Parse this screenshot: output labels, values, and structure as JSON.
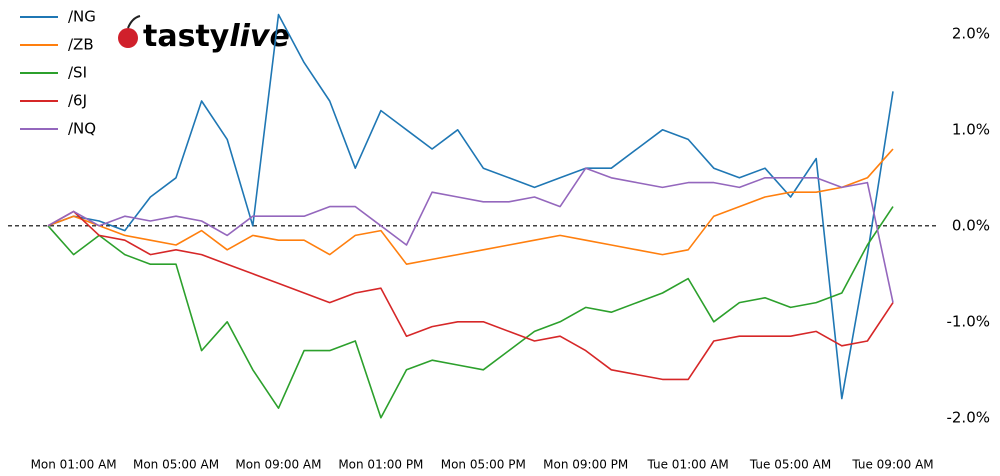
{
  "logo": {
    "first": "tasty",
    "second": "live"
  },
  "chart_data": {
    "type": "line",
    "categories": [
      null,
      "Mon 01:00 AM",
      null,
      null,
      null,
      "Mon 05:00 AM",
      null,
      null,
      null,
      "Mon 09:00 AM",
      null,
      null,
      null,
      "Mon 01:00 PM",
      null,
      null,
      null,
      "Mon 05:00 PM",
      null,
      null,
      null,
      "Mon 09:00 PM",
      null,
      null,
      null,
      "Tue 01:00 AM",
      null,
      null,
      null,
      "Tue 05:00 AM",
      null,
      null,
      null,
      "Tue 09:00 AM"
    ],
    "series": [
      {
        "name": "/NG",
        "color": "#1f77b4",
        "values": [
          0,
          0.1,
          0.05,
          -0.05,
          0.3,
          0.5,
          1.3,
          0.9,
          0.0,
          2.2,
          1.7,
          1.3,
          0.6,
          1.2,
          1.0,
          0.8,
          1.0,
          0.6,
          0.5,
          0.4,
          0.5,
          0.6,
          0.6,
          0.8,
          1.0,
          0.9,
          0.6,
          0.5,
          0.6,
          0.3,
          0.7,
          -1.8,
          -0.3,
          1.4
        ]
      },
      {
        "name": "/ZB",
        "color": "#ff7f0e",
        "values": [
          0,
          0.1,
          0,
          -0.1,
          -0.15,
          -0.2,
          -0.05,
          -0.25,
          -0.1,
          -0.15,
          -0.15,
          -0.3,
          -0.1,
          -0.05,
          -0.4,
          -0.35,
          -0.3,
          -0.25,
          -0.2,
          -0.15,
          -0.1,
          -0.15,
          -0.2,
          -0.25,
          -0.3,
          -0.25,
          0.1,
          0.2,
          0.3,
          0.35,
          0.35,
          0.4,
          0.5,
          0.8
        ]
      },
      {
        "name": "/SI",
        "color": "#2ca02c",
        "values": [
          0,
          -0.3,
          -0.1,
          -0.3,
          -0.4,
          -0.4,
          -1.3,
          -1.0,
          -1.5,
          -1.9,
          -1.3,
          -1.3,
          -1.2,
          -2.0,
          -1.5,
          -1.4,
          -1.45,
          -1.5,
          -1.3,
          -1.1,
          -1.0,
          -0.85,
          -0.9,
          -0.8,
          -0.7,
          -0.55,
          -1.0,
          -0.8,
          -0.75,
          -0.85,
          -0.8,
          -0.7,
          -0.2,
          0.2
        ]
      },
      {
        "name": "/6J",
        "color": "#d62728",
        "values": [
          0,
          0.15,
          -0.1,
          -0.15,
          -0.3,
          -0.25,
          -0.3,
          -0.4,
          -0.5,
          -0.6,
          -0.7,
          -0.8,
          -0.7,
          -0.65,
          -1.15,
          -1.05,
          -1.0,
          -1.0,
          -1.1,
          -1.2,
          -1.15,
          -1.3,
          -1.5,
          -1.55,
          -1.6,
          -1.6,
          -1.2,
          -1.15,
          -1.15,
          -1.15,
          -1.1,
          -1.25,
          -1.2,
          -0.8
        ]
      },
      {
        "name": "/NQ",
        "color": "#9467bd",
        "values": [
          0,
          0.15,
          0.0,
          0.1,
          0.05,
          0.1,
          0.05,
          -0.1,
          0.1,
          0.1,
          0.1,
          0.2,
          0.2,
          0,
          -0.2,
          0.35,
          0.3,
          0.25,
          0.25,
          0.3,
          0.2,
          0.6,
          0.5,
          0.45,
          0.4,
          0.45,
          0.45,
          0.4,
          0.5,
          0.5,
          0.5,
          0.4,
          0.45,
          -0.8
        ]
      }
    ],
    "ylim": [
      -2.2,
      2.3
    ],
    "yticks": [
      {
        "value": 2,
        "label": "2.0%"
      },
      {
        "value": 1,
        "label": "1.0%"
      },
      {
        "value": 0,
        "label": "0.0%"
      },
      {
        "value": -1,
        "label": "-1.0%"
      },
      {
        "value": -2,
        "label": "-2.0%"
      }
    ],
    "legend": "upper left"
  }
}
